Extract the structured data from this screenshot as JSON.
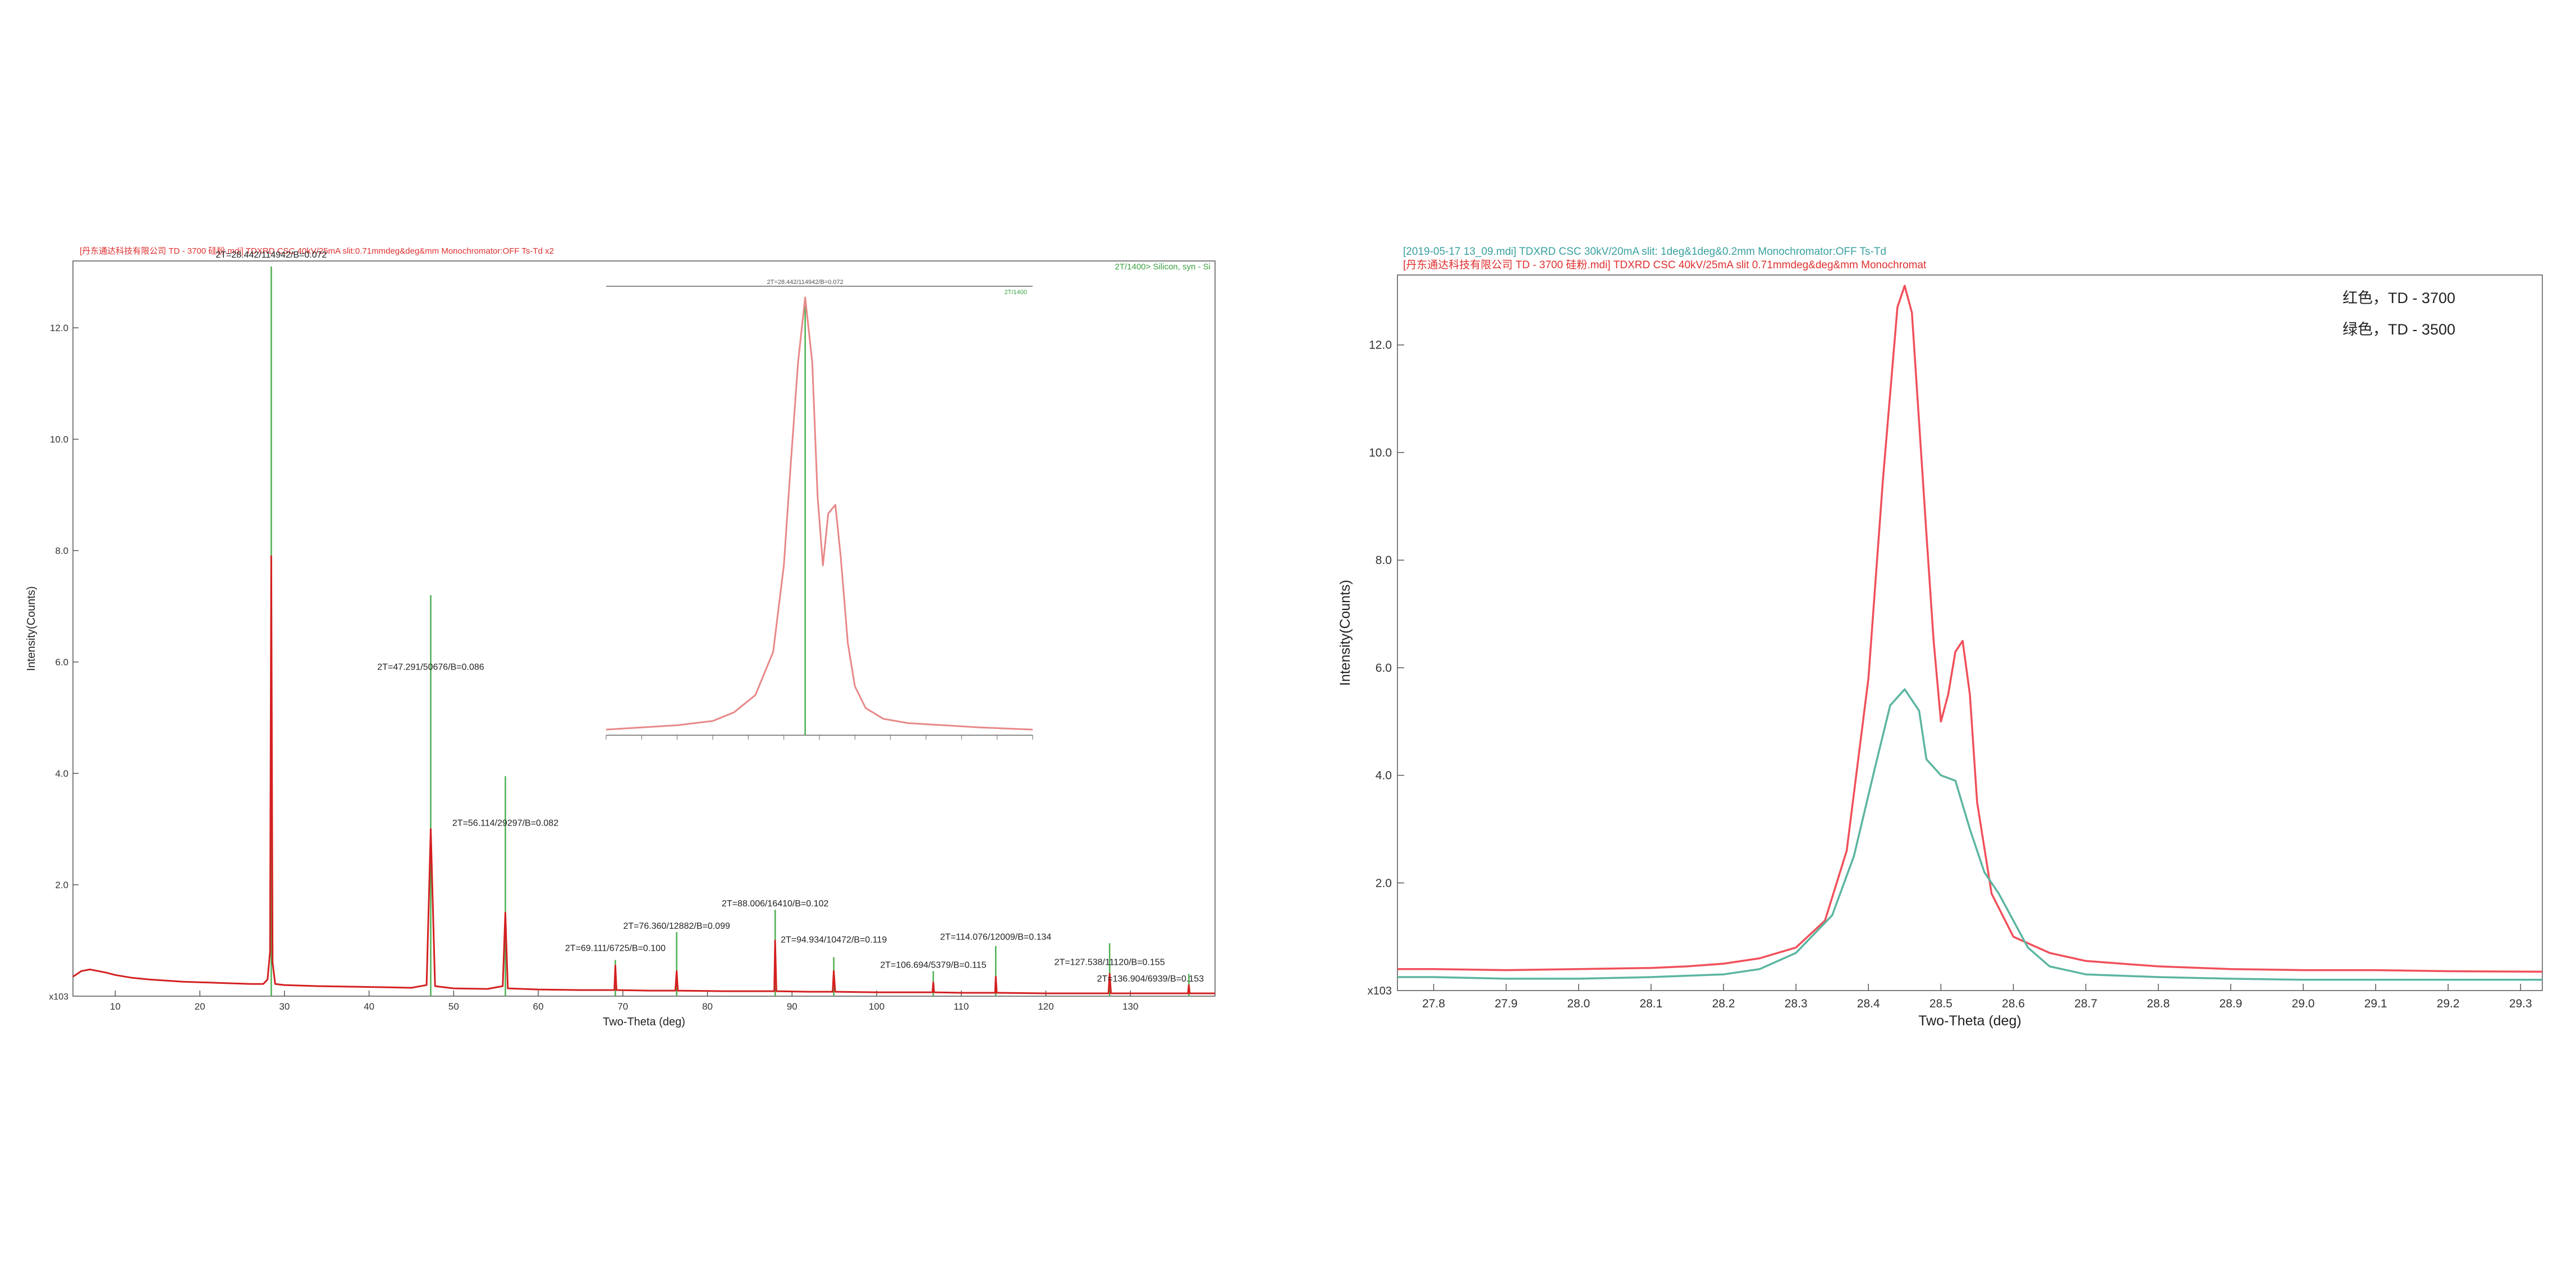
{
  "chart_data": [
    {
      "type": "line",
      "header": "[丹东通达科技有限公司 TD - 3700 硅粉.mdi] TDXRD CSC 40kV/25mA slit:0.71mmdeg&deg&mm Monochromator:OFF Ts-Td x2",
      "legend_note": "2T/1400> Silicon, syn - Si",
      "xlabel": "Two-Theta (deg)",
      "ylabel": "Intensity(Counts)",
      "y_multiplier_label": "x10^3",
      "xlim": [
        5,
        140
      ],
      "ylim": [
        0,
        13.2
      ],
      "xticks": [
        10,
        20,
        30,
        40,
        50,
        60,
        70,
        80,
        90,
        100,
        110,
        120,
        130
      ],
      "yticks": [
        2.0,
        4.0,
        6.0,
        8.0,
        10.0,
        12.0
      ],
      "ytick_labels": [
        "2.0",
        "4.0",
        "6.0",
        "8.0",
        "10.0",
        "12.0"
      ],
      "grid": false,
      "series": [
        {
          "color": "#d42020",
          "x": [
            5,
            6,
            7,
            8,
            9,
            10,
            12,
            14,
            16,
            18,
            20,
            22,
            24,
            26,
            27.5,
            28.0,
            28.3,
            28.44,
            28.6,
            28.9,
            30,
            34,
            38,
            42,
            45,
            46.8,
            47.29,
            47.8,
            50,
            54,
            55.8,
            56.11,
            56.4,
            60,
            65,
            69.0,
            69.11,
            69.25,
            73,
            76.2,
            76.36,
            76.5,
            82,
            87.9,
            88.0,
            88.15,
            92,
            94.8,
            94.93,
            95.1,
            100,
            106.6,
            106.69,
            106.8,
            110,
            114.0,
            114.08,
            114.2,
            120,
            127.4,
            127.54,
            127.7,
            132,
            136.8,
            136.9,
            137.0,
            140
          ],
          "y": [
            0.35,
            0.45,
            0.48,
            0.45,
            0.42,
            0.38,
            0.33,
            0.3,
            0.28,
            0.26,
            0.25,
            0.24,
            0.23,
            0.22,
            0.22,
            0.3,
            0.8,
            7.9,
            0.6,
            0.22,
            0.2,
            0.18,
            0.17,
            0.16,
            0.15,
            0.2,
            3.0,
            0.18,
            0.14,
            0.13,
            0.18,
            1.5,
            0.14,
            0.12,
            0.11,
            0.11,
            0.55,
            0.11,
            0.1,
            0.1,
            0.45,
            0.1,
            0.09,
            0.09,
            1.0,
            0.09,
            0.08,
            0.08,
            0.45,
            0.08,
            0.07,
            0.07,
            0.25,
            0.07,
            0.06,
            0.06,
            0.35,
            0.06,
            0.05,
            0.05,
            0.4,
            0.05,
            0.05,
            0.05,
            0.2,
            0.05,
            0.05
          ]
        }
      ],
      "reference_lines": {
        "color": "#4caf50",
        "x": [
          28.442,
          47.291,
          56.114,
          69.111,
          76.36,
          88.006,
          94.934,
          106.694,
          114.076,
          127.538,
          136.904
        ],
        "y": [
          13.1,
          7.2,
          3.95,
          0.65,
          1.15,
          1.55,
          0.7,
          0.45,
          0.9,
          0.95,
          0.4
        ]
      },
      "annotations": [
        {
          "text": "2T=28.442/114942/B=0.072",
          "x": 28.442,
          "y": 13.2
        },
        {
          "text": "2T=47.291/50676/B=0.086",
          "x": 47.291,
          "y": 5.8
        },
        {
          "text": "2T=56.114/29297/B=0.082",
          "x": 56.114,
          "y": 3.0
        },
        {
          "text": "2T=69.111/6725/B=0.100",
          "x": 69.111,
          "y": 0.75
        },
        {
          "text": "2T=76.360/12882/B=0.099",
          "x": 76.36,
          "y": 1.15
        },
        {
          "text": "2T=88.006/16410/B=0.102",
          "x": 88.006,
          "y": 1.55
        },
        {
          "text": "2T=94.934/10472/B=0.119",
          "x": 94.934,
          "y": 0.9
        },
        {
          "text": "2T=106.694/5379/B=0.115",
          "x": 106.694,
          "y": 0.45
        },
        {
          "text": "2T=114.076/12009/B=0.134",
          "x": 114.076,
          "y": 0.95
        },
        {
          "text": "2T=127.538/11120/B=0.155",
          "x": 127.538,
          "y": 0.5
        },
        {
          "text": "2T=136.904/6939/B=0.153",
          "x": 136.904,
          "y": 0.2
        }
      ],
      "inset": {
        "type": "line",
        "header_text": "2T=28.442/114942/B=0.072",
        "corner_text": "2T/1400",
        "xlim": [
          0,
          12
        ],
        "ylim": [
          0,
          1
        ],
        "series": [
          {
            "color": "#e88888",
            "x": [
              0,
              1,
              2,
              3,
              3.6,
              4.2,
              4.7,
              5.0,
              5.2,
              5.4,
              5.6,
              5.8,
              5.95,
              6.1,
              6.25,
              6.45,
              6.6,
              6.8,
              7.0,
              7.3,
              7.8,
              8.5,
              9.5,
              10.5,
              12
            ],
            "y": [
              0.0,
              0.005,
              0.01,
              0.02,
              0.04,
              0.08,
              0.18,
              0.38,
              0.62,
              0.85,
              1.0,
              0.85,
              0.54,
              0.38,
              0.5,
              0.52,
              0.4,
              0.2,
              0.1,
              0.05,
              0.025,
              0.015,
              0.01,
              0.005,
              0.0
            ]
          }
        ],
        "reference_line_x": 5.6
      }
    },
    {
      "type": "line",
      "header_line_1": "[2019-05-17 13_09.mdi] TDXRD CSC 30kV/20mA slit: 1deg&1deg&0.2mm Monochromator:OFF Ts-Td",
      "header_line_2": "[丹东通达科技有限公司 TD - 3700 硅粉.mdi] TDXRD CSC 40kV/25mA slit 0.71mmdeg&deg&mm Monochromat",
      "xlabel": "Two-Theta (deg)",
      "ylabel": "Intensity(Counts)",
      "y_multiplier_label": "x10^3",
      "xlim": [
        27.75,
        29.33
      ],
      "ylim": [
        0,
        13.3
      ],
      "xticks": [
        27.8,
        27.9,
        28.0,
        28.1,
        28.2,
        28.3,
        28.4,
        28.5,
        28.6,
        28.7,
        28.8,
        28.9,
        29.0,
        29.1,
        29.2,
        29.3
      ],
      "xtick_labels": [
        "27.8",
        "27.9",
        "28.0",
        "28.1",
        "28.2",
        "28.3",
        "28.4",
        "28.5",
        "28.6",
        "28.7",
        "28.8",
        "28.9",
        "29.0",
        "29.1",
        "29.2",
        "29.3"
      ],
      "yticks": [
        2.0,
        4.0,
        6.0,
        8.0,
        10.0,
        12.0
      ],
      "ytick_labels": [
        "2.0",
        "4.0",
        "6.0",
        "8.0",
        "10.0",
        "12.0"
      ],
      "grid": false,
      "legend_position": "top-right",
      "legend_texts": [
        "红色，TD - 3700",
        "绿色，TD - 3500"
      ],
      "series": [
        {
          "name": "红色，TD - 3700",
          "color": "#f0505a",
          "x": [
            27.75,
            27.8,
            27.9,
            28.0,
            28.1,
            28.15,
            28.2,
            28.25,
            28.3,
            28.34,
            28.37,
            28.4,
            28.42,
            28.44,
            28.45,
            28.46,
            28.48,
            28.49,
            28.5,
            28.51,
            28.52,
            28.53,
            28.54,
            28.55,
            28.57,
            28.6,
            28.65,
            28.7,
            28.8,
            28.9,
            29.0,
            29.1,
            29.2,
            29.33
          ],
          "y": [
            0.4,
            0.4,
            0.38,
            0.4,
            0.42,
            0.45,
            0.5,
            0.6,
            0.8,
            1.3,
            2.6,
            5.8,
            9.5,
            12.7,
            13.1,
            12.6,
            8.5,
            6.5,
            5.0,
            5.5,
            6.3,
            6.5,
            5.5,
            3.5,
            1.8,
            1.0,
            0.7,
            0.55,
            0.45,
            0.4,
            0.38,
            0.38,
            0.36,
            0.35
          ]
        },
        {
          "name": "绿色，TD - 3500",
          "color": "#5bb5a0",
          "x": [
            27.75,
            27.8,
            27.9,
            28.0,
            28.1,
            28.2,
            28.25,
            28.3,
            28.35,
            28.38,
            28.41,
            28.43,
            28.45,
            28.47,
            28.48,
            28.5,
            28.52,
            28.54,
            28.56,
            28.58,
            28.6,
            28.62,
            28.65,
            28.7,
            28.8,
            28.9,
            29.0,
            29.1,
            29.2,
            29.33
          ],
          "y": [
            0.25,
            0.25,
            0.22,
            0.22,
            0.25,
            0.3,
            0.4,
            0.7,
            1.4,
            2.5,
            4.2,
            5.3,
            5.6,
            5.2,
            4.3,
            4.0,
            3.9,
            3.0,
            2.2,
            1.8,
            1.3,
            0.8,
            0.45,
            0.3,
            0.25,
            0.22,
            0.2,
            0.2,
            0.2,
            0.2
          ]
        }
      ]
    }
  ]
}
